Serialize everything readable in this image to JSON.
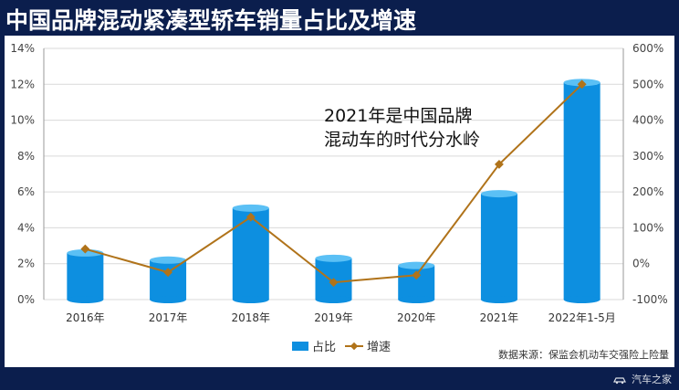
{
  "title": "中国品牌混动紧凑型轿车销量占比及增速",
  "annotation": [
    "2021年是中国品牌",
    "混动车的时代分水岭"
  ],
  "source": "数据来源：保监会机动车交强险上险量",
  "watermark": "汽车之家",
  "legend": {
    "bar": "占比",
    "line": "增速"
  },
  "colors": {
    "bar": "#0d8fe0",
    "bar_top": "#5bc0f5",
    "line": "#b0731a",
    "axis": "#555555",
    "grid": "#d9d9d9"
  },
  "chart_data": {
    "type": "bar",
    "categories": [
      "2016年",
      "2017年",
      "2018年",
      "2019年",
      "2020年",
      "2021年",
      "2022年1-5月"
    ],
    "series": [
      {
        "name": "占比",
        "type": "bar",
        "axis": "left",
        "values": [
          2.6,
          2.2,
          5.1,
          2.3,
          1.9,
          5.9,
          12.1
        ]
      },
      {
        "name": "增速",
        "type": "line",
        "axis": "right",
        "values": [
          41,
          -24,
          130,
          -52,
          -32,
          277,
          500
        ]
      }
    ],
    "y_left": {
      "min": 0,
      "max": 14,
      "step": 2,
      "format": "percent"
    },
    "y_right": {
      "min": -100,
      "max": 600,
      "step": 100,
      "format": "percent"
    },
    "grid": true,
    "legend_position": "bottom"
  }
}
